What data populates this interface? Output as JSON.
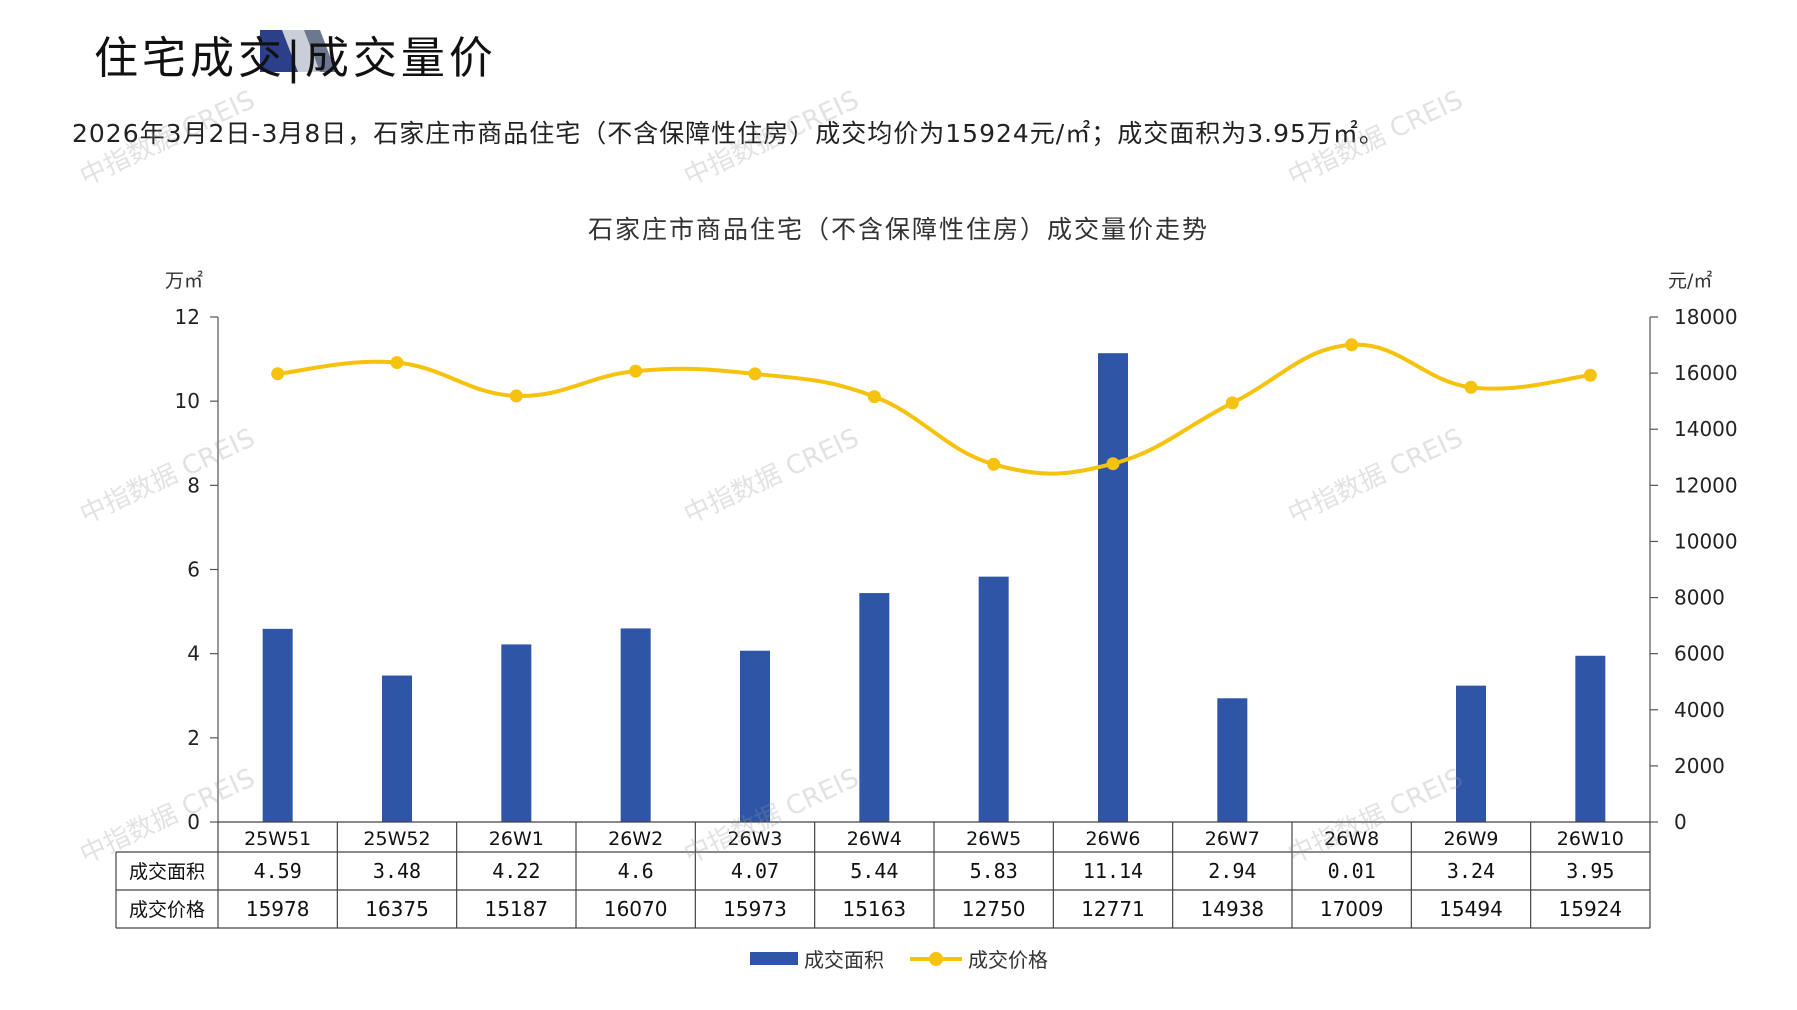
{
  "header": {
    "title": "住宅成交|成交量价",
    "summary": "2026年3月2日-3月8日，石家庄市商品住宅（不含保障性住房）成交均价为15924元/㎡；成交面积为3.95万㎡。"
  },
  "watermark_text": "中指数据 CREIS",
  "colors": {
    "bar": "#2f56a6",
    "line": "#f5c20e",
    "accent_dark": "#2b3f8a",
    "accent_grey": "#9aa3b5"
  },
  "chart_data": {
    "type": "bar+line",
    "title": "石家庄市商品住宅（不含保障性住房）成交量价走势",
    "left_unit": "万㎡",
    "right_unit": "元/㎡",
    "categories": [
      "25W51",
      "25W52",
      "26W1",
      "26W2",
      "26W3",
      "26W4",
      "26W5",
      "26W6",
      "26W7",
      "26W8",
      "26W9",
      "26W10"
    ],
    "series": [
      {
        "name": "成交面积",
        "type": "bar",
        "axis": "left",
        "values": [
          4.59,
          3.48,
          4.22,
          4.6,
          4.07,
          5.44,
          5.83,
          11.14,
          2.94,
          0.01,
          3.24,
          3.95
        ],
        "labels": [
          "4.59",
          "3.48",
          "4.22",
          "4.6",
          "4.07",
          "5.44",
          "5.83",
          "11.14",
          "2.94",
          "0.01",
          "3.24",
          "3.95"
        ]
      },
      {
        "name": "成交价格",
        "type": "line",
        "axis": "right",
        "values": [
          15978,
          16375,
          15187,
          16070,
          15973,
          15163,
          12750,
          12771,
          14938,
          17009,
          15494,
          15924
        ],
        "labels": [
          "15978",
          "16375",
          "15187",
          "16070",
          "15973",
          "15163",
          "12750",
          "12771",
          "14938",
          "17009",
          "15494",
          "15924"
        ]
      }
    ],
    "left_axis": {
      "min": 0,
      "max": 12,
      "ticks": [
        "0",
        "2",
        "4",
        "6",
        "8",
        "10",
        "12"
      ]
    },
    "right_axis": {
      "min": 0,
      "max": 18000,
      "ticks": [
        "0",
        "2000",
        "4000",
        "6000",
        "8000",
        "10000",
        "12000",
        "14000",
        "16000",
        "18000"
      ]
    },
    "table_row_labels": [
      "成交面积",
      "成交价格"
    ],
    "legend_position": "bottom",
    "grid": false
  }
}
